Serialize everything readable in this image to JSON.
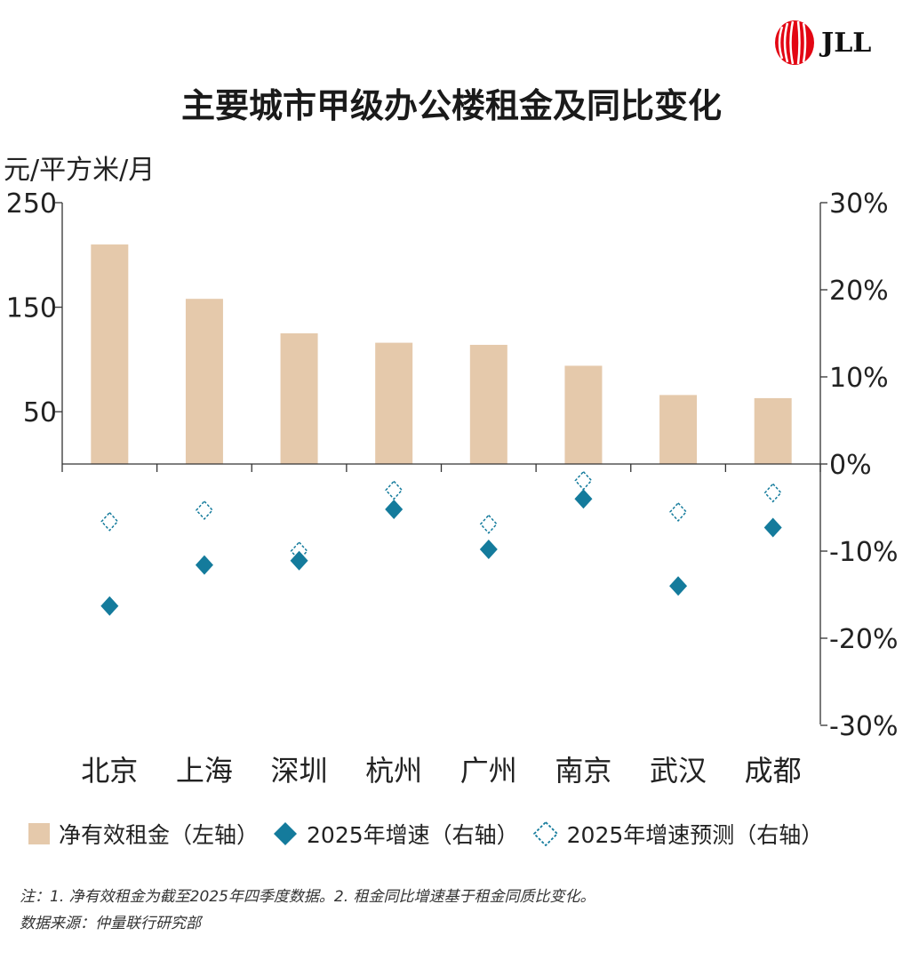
{
  "logo": {
    "text": "JLL"
  },
  "chart_data": {
    "type": "bar",
    "title": "主要城市甲级办公楼租金及同比变化",
    "ylabel": "元/平方米/月",
    "categories": [
      "北京",
      "上海",
      "深圳",
      "杭州",
      "广州",
      "南京",
      "武汉",
      "成都"
    ],
    "ylim": [
      0,
      250
    ],
    "yticks": [
      "250",
      "150",
      "50"
    ],
    "y2lim": [
      -30,
      30
    ],
    "y2ticks": [
      "30%",
      "20%",
      "10%",
      "0%",
      "-10%",
      "-20%",
      "-30%"
    ],
    "grid": false,
    "legend_position": "bottom",
    "series": [
      {
        "name": "净有效租金（左轴）",
        "type": "bar",
        "axis": "left",
        "color": "#e5c9ab",
        "values": [
          210,
          158,
          125,
          116,
          114,
          94,
          66,
          63
        ]
      },
      {
        "name": "2025年增速（右轴）",
        "type": "scatter",
        "marker": "filled-diamond",
        "axis": "right",
        "color": "#147b9c",
        "values": [
          -16.3,
          -11.6,
          -11.1,
          -5.2,
          -9.8,
          -4.0,
          -14.0,
          -7.3
        ]
      },
      {
        "name": "2025年增速预测（右轴）",
        "type": "scatter",
        "marker": "dashed-hollow-diamond",
        "axis": "right",
        "color": "#147b9c",
        "values": [
          -6.6,
          -5.3,
          -10.0,
          -3.0,
          -6.9,
          -1.9,
          -5.5,
          -3.3
        ]
      }
    ]
  },
  "notes": {
    "line1": "注：1. 净有效租金为截至2025年四季度数据。2. 租金同比增速基于租金同质比变化。",
    "line2": "数据来源：仲量联行研究部"
  }
}
